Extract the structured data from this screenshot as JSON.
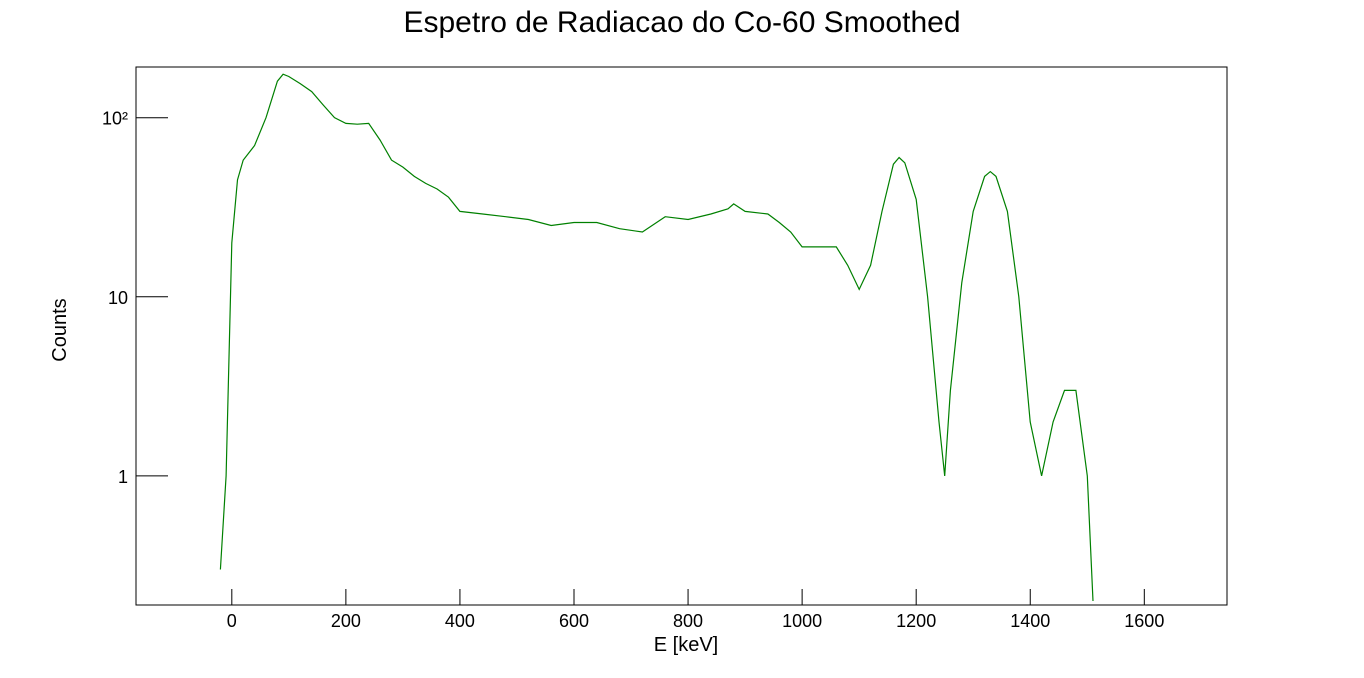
{
  "chart_data": {
    "type": "line",
    "title": "Espetro de Radiacao do Co-60 Smoothed",
    "xlabel": "E [keV]",
    "ylabel": "Counts",
    "log_y": true,
    "color": "#008000",
    "xlim": [
      -168,
      1745
    ],
    "ylim": [
      0.19,
      192
    ],
    "xticks": [
      0,
      200,
      400,
      600,
      800,
      1000,
      1200,
      1400,
      1600
    ],
    "yticks": [
      1,
      10,
      {
        "value": 100,
        "label": "10²"
      }
    ],
    "x": [
      -20,
      -10,
      0,
      10,
      20,
      40,
      60,
      80,
      90,
      100,
      120,
      140,
      160,
      180,
      200,
      220,
      240,
      260,
      280,
      300,
      320,
      340,
      360,
      380,
      400,
      440,
      480,
      520,
      560,
      600,
      640,
      680,
      720,
      760,
      800,
      840,
      870,
      880,
      900,
      940,
      960,
      980,
      1000,
      1040,
      1060,
      1080,
      1100,
      1120,
      1140,
      1160,
      1170,
      1180,
      1200,
      1220,
      1240,
      1250,
      1260,
      1280,
      1300,
      1320,
      1330,
      1340,
      1360,
      1380,
      1400,
      1420,
      1440,
      1460,
      1480,
      1500,
      1510
    ],
    "values": [
      0.3,
      1,
      20,
      45,
      58,
      70,
      100,
      160,
      175,
      170,
      155,
      140,
      118,
      100,
      93,
      92,
      93,
      75,
      58,
      53,
      47,
      43,
      40,
      36,
      30,
      29,
      28,
      27,
      25,
      26,
      26,
      24,
      23,
      28,
      27,
      29,
      31,
      33,
      30,
      29,
      26,
      23,
      19,
      19,
      19,
      15,
      11,
      15,
      30,
      55,
      60,
      56,
      35,
      10,
      2,
      1,
      3,
      12,
      30,
      47,
      50,
      47,
      30,
      10,
      2,
      1,
      2,
      3,
      3,
      1,
      0.2
    ]
  }
}
